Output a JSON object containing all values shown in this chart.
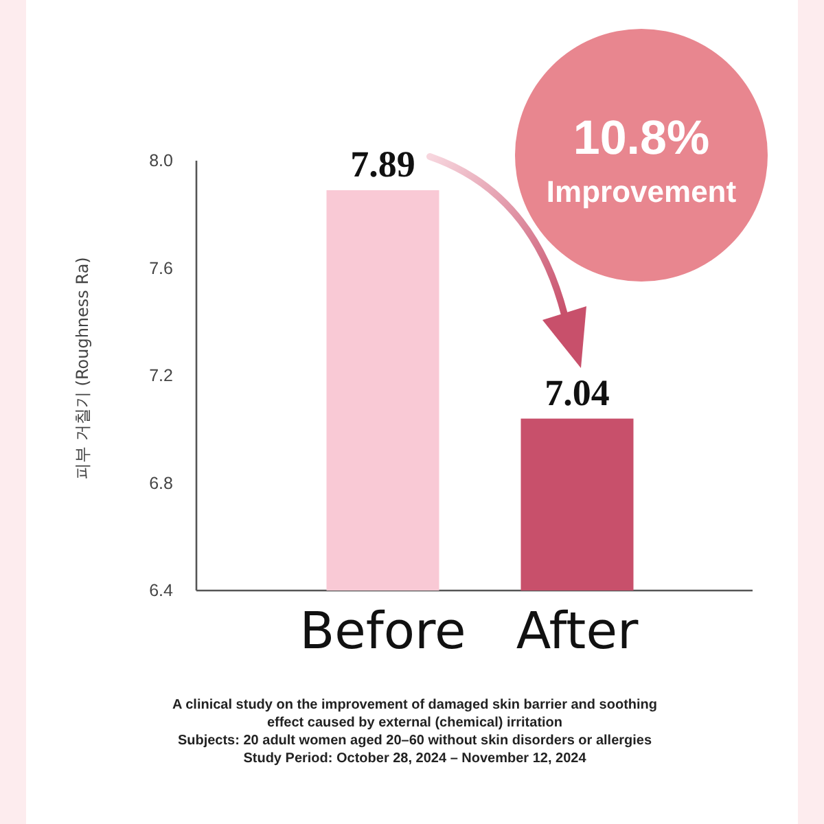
{
  "chart_data": {
    "type": "bar",
    "categories": [
      "Before",
      "After"
    ],
    "values": [
      7.89,
      7.04
    ],
    "colors": [
      "#f9c9d5",
      "#c8506b"
    ],
    "ylabel": "피부 거칠기 (Roughness Ra)",
    "ylim": [
      6.4,
      8.0
    ],
    "yticks": [
      6.4,
      6.8,
      7.2,
      7.6,
      {
        "value": 8,
        "label": "8.0"
      }
    ],
    "data_labels": true,
    "annotations": [
      "10.8%",
      "Improvement",
      "A clinical study on the improvement of damaged skin barrier and soothing effect caused by external (chemical) irritation",
      "Subjects: 20 adult women aged 20–60 without skin disorders or allergies",
      "Study Period: October 28, 2024 – November 12, 2024"
    ]
  }
}
